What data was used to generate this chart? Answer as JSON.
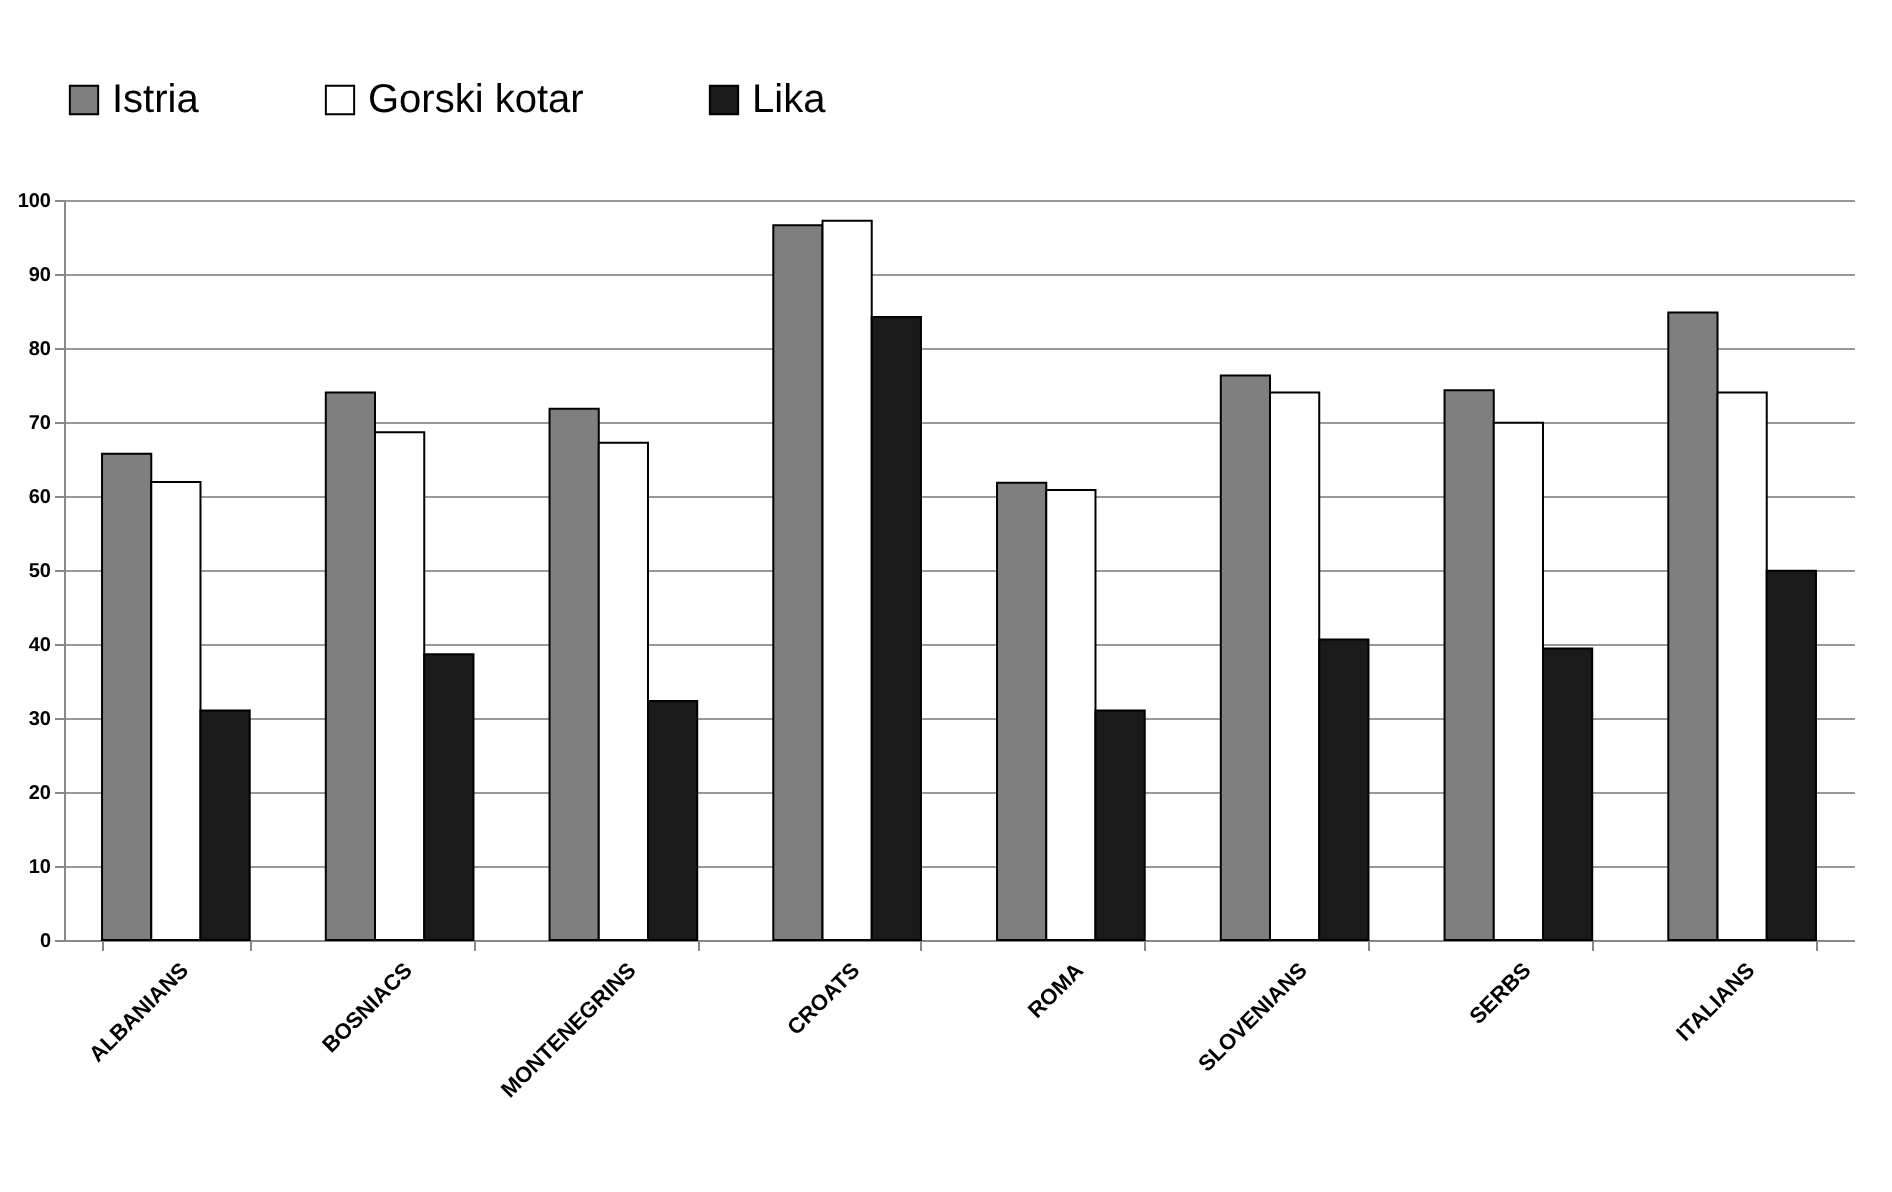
{
  "chart_data": {
    "type": "bar",
    "categories": [
      "ALBANIANS",
      "BOSNIACS",
      "MONTENEGRINS",
      "CROATS",
      "ROMA",
      "SLOVENIANS",
      "SERBS",
      "ITALIANS"
    ],
    "series": [
      {
        "name": "Istria",
        "color": "#7f7f7f",
        "values": [
          65.7,
          74,
          71.8,
          96.6,
          61.8,
          76.3,
          74.3,
          84.8
        ]
      },
      {
        "name": "Gorski kotar",
        "color": "#ffffff",
        "values": [
          61.9,
          68.6,
          67.2,
          97.2,
          60.8,
          74,
          69.9,
          74
        ]
      },
      {
        "name": "Lika",
        "color": "#1a1a1a",
        "values": [
          31,
          38.6,
          32.3,
          84.2,
          31,
          40.6,
          39.4,
          49.9
        ]
      }
    ],
    "ylim": [
      0,
      100
    ],
    "yticks": [
      0,
      10,
      20,
      30,
      40,
      50,
      60,
      70,
      80,
      90,
      100
    ],
    "grid": "y",
    "legend": "top"
  }
}
